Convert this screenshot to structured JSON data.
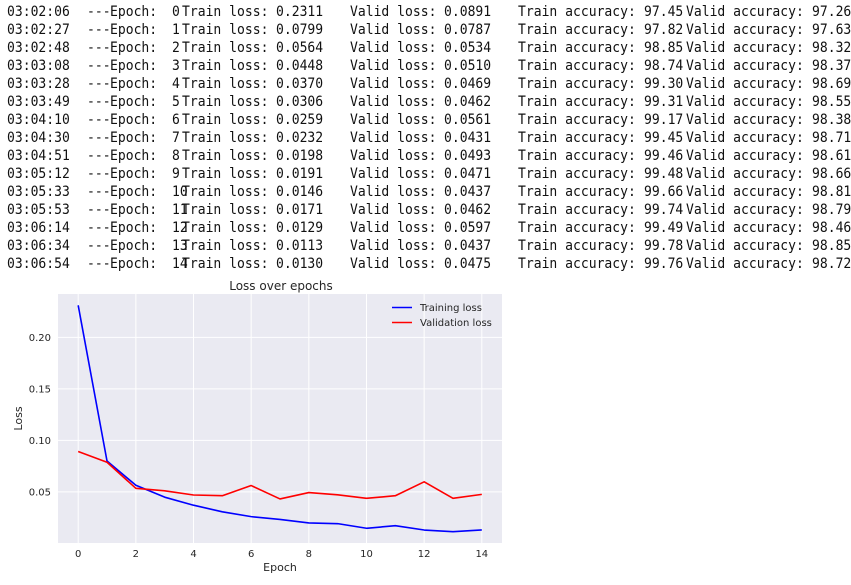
{
  "log": {
    "separator": "---",
    "epoch_label": "Epoch:",
    "train_loss_label": "Train loss:",
    "valid_loss_label": "Valid loss:",
    "train_acc_label": "Train accuracy:",
    "valid_acc_label": "Valid accuracy:",
    "rows": [
      {
        "time": "03:02:06",
        "epoch": "0",
        "train_loss": "0.2311",
        "valid_loss": "0.0891",
        "train_acc": "97.45",
        "valid_acc": "97.26"
      },
      {
        "time": "03:02:27",
        "epoch": "1",
        "train_loss": "0.0799",
        "valid_loss": "0.0787",
        "train_acc": "97.82",
        "valid_acc": "97.63"
      },
      {
        "time": "03:02:48",
        "epoch": "2",
        "train_loss": "0.0564",
        "valid_loss": "0.0534",
        "train_acc": "98.85",
        "valid_acc": "98.32"
      },
      {
        "time": "03:03:08",
        "epoch": "3",
        "train_loss": "0.0448",
        "valid_loss": "0.0510",
        "train_acc": "98.74",
        "valid_acc": "98.37"
      },
      {
        "time": "03:03:28",
        "epoch": "4",
        "train_loss": "0.0370",
        "valid_loss": "0.0469",
        "train_acc": "99.30",
        "valid_acc": "98.69"
      },
      {
        "time": "03:03:49",
        "epoch": "5",
        "train_loss": "0.0306",
        "valid_loss": "0.0462",
        "train_acc": "99.31",
        "valid_acc": "98.55"
      },
      {
        "time": "03:04:10",
        "epoch": "6",
        "train_loss": "0.0259",
        "valid_loss": "0.0561",
        "train_acc": "99.17",
        "valid_acc": "98.38"
      },
      {
        "time": "03:04:30",
        "epoch": "7",
        "train_loss": "0.0232",
        "valid_loss": "0.0431",
        "train_acc": "99.45",
        "valid_acc": "98.71"
      },
      {
        "time": "03:04:51",
        "epoch": "8",
        "train_loss": "0.0198",
        "valid_loss": "0.0493",
        "train_acc": "99.46",
        "valid_acc": "98.61"
      },
      {
        "time": "03:05:12",
        "epoch": "9",
        "train_loss": "0.0191",
        "valid_loss": "0.0471",
        "train_acc": "99.48",
        "valid_acc": "98.66"
      },
      {
        "time": "03:05:33",
        "epoch": "10",
        "train_loss": "0.0146",
        "valid_loss": "0.0437",
        "train_acc": "99.66",
        "valid_acc": "98.81"
      },
      {
        "time": "03:05:53",
        "epoch": "11",
        "train_loss": "0.0171",
        "valid_loss": "0.0462",
        "train_acc": "99.74",
        "valid_acc": "98.79"
      },
      {
        "time": "03:06:14",
        "epoch": "12",
        "train_loss": "0.0129",
        "valid_loss": "0.0597",
        "train_acc": "99.49",
        "valid_acc": "98.46"
      },
      {
        "time": "03:06:34",
        "epoch": "13",
        "train_loss": "0.0113",
        "valid_loss": "0.0437",
        "train_acc": "99.78",
        "valid_acc": "98.85"
      },
      {
        "time": "03:06:54",
        "epoch": "14",
        "train_loss": "0.0130",
        "valid_loss": "0.0475",
        "train_acc": "99.76",
        "valid_acc": "98.72"
      }
    ]
  },
  "chart_data": {
    "type": "line",
    "title": "Loss over epochs",
    "xlabel": "Epoch",
    "ylabel": "Loss",
    "x": [
      0,
      1,
      2,
      3,
      4,
      5,
      6,
      7,
      8,
      9,
      10,
      11,
      12,
      13,
      14
    ],
    "xticks": [
      "0",
      "2",
      "4",
      "6",
      "8",
      "10",
      "12",
      "14"
    ],
    "yticks": [
      "0.05",
      "0.10",
      "0.15",
      "0.20"
    ],
    "xlim": [
      -0.7,
      14.7
    ],
    "ylim": [
      0.0003,
      0.2421
    ],
    "grid": true,
    "legend_position": "top-right",
    "series": [
      {
        "name": "Training loss",
        "color": "#0000ff",
        "values": [
          0.2311,
          0.0799,
          0.0564,
          0.0448,
          0.037,
          0.0306,
          0.0259,
          0.0232,
          0.0198,
          0.0191,
          0.0146,
          0.0171,
          0.0129,
          0.0113,
          0.013
        ]
      },
      {
        "name": "Validation loss",
        "color": "#ff0000",
        "values": [
          0.0891,
          0.0787,
          0.0534,
          0.051,
          0.0469,
          0.0462,
          0.0561,
          0.0431,
          0.0493,
          0.0471,
          0.0437,
          0.0462,
          0.0597,
          0.0437,
          0.0475
        ]
      }
    ]
  }
}
